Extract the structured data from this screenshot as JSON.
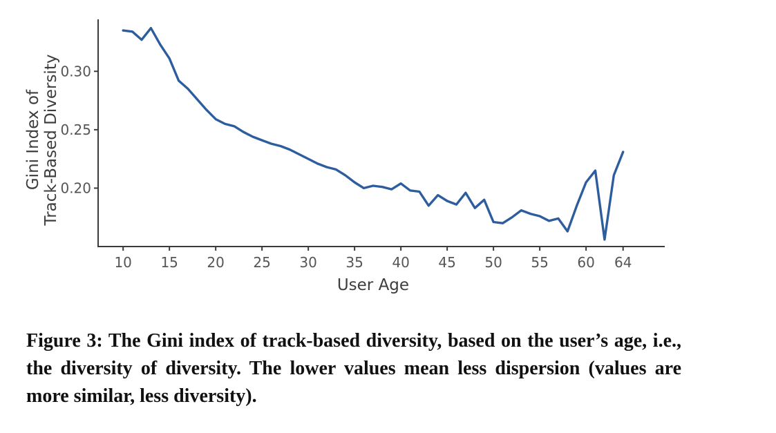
{
  "chart_data": {
    "type": "line",
    "title": "",
    "xlabel": "User Age",
    "ylabel": "Gini Index of Track-Based Diversity",
    "ylabel_lines": [
      "Gini Index of",
      "Track-Based Diversity"
    ],
    "x": [
      10,
      11,
      12,
      13,
      14,
      15,
      16,
      17,
      18,
      19,
      20,
      21,
      22,
      23,
      24,
      25,
      26,
      27,
      28,
      29,
      30,
      31,
      32,
      33,
      34,
      35,
      36,
      37,
      38,
      39,
      40,
      41,
      42,
      43,
      44,
      45,
      46,
      47,
      48,
      49,
      50,
      51,
      52,
      53,
      54,
      55,
      56,
      57,
      58,
      59,
      60,
      61,
      62,
      63,
      64
    ],
    "y": [
      0.335,
      0.334,
      0.327,
      0.337,
      0.323,
      0.311,
      0.292,
      0.285,
      0.276,
      0.267,
      0.259,
      0.255,
      0.253,
      0.248,
      0.244,
      0.241,
      0.238,
      0.236,
      0.233,
      0.229,
      0.225,
      0.221,
      0.218,
      0.216,
      0.211,
      0.205,
      0.2,
      0.202,
      0.201,
      0.199,
      0.204,
      0.198,
      0.197,
      0.185,
      0.194,
      0.189,
      0.186,
      0.196,
      0.183,
      0.19,
      0.171,
      0.17,
      0.175,
      0.181,
      0.178,
      0.176,
      0.172,
      0.174,
      0.163,
      0.185,
      0.205,
      0.215,
      0.156,
      0.211,
      0.231
    ],
    "xticks": [
      10,
      15,
      20,
      25,
      30,
      35,
      40,
      45,
      50,
      55,
      60,
      64
    ],
    "yticks": [
      0.2,
      0.25,
      0.3
    ],
    "ytick_labels": [
      "0.20",
      "0.25",
      "0.30"
    ],
    "xlim": [
      7.3,
      68.5
    ],
    "ylim": [
      0.15,
      0.3445
    ],
    "grid": false,
    "legend": null,
    "line_color": "#2e5d9e",
    "axis_color": "#3a3a3a",
    "tick_label_color": "#555555",
    "axis_label_color": "#3d3d3d"
  },
  "caption": {
    "text": "Figure 3: The Gini index of track-based diversity, based on the user’s age, i.e., the diversity of diversity. The lower values mean less dispersion (values are more similar, less diversity)."
  }
}
